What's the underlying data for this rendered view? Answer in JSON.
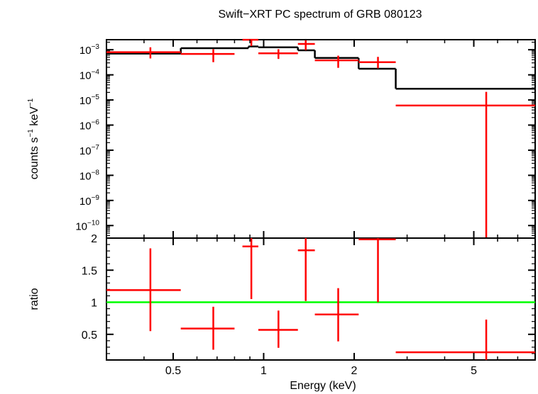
{
  "chart_data": {
    "type": "scatter",
    "title": "Swift−XRT PC spectrum of GRB 080123",
    "xlabel": "Energy (keV)",
    "xscale": "log",
    "xlim": [
      0.3,
      8.0
    ],
    "xticks": [
      {
        "value": 0.5,
        "label": "0.5"
      },
      {
        "value": 1,
        "label": "1"
      },
      {
        "value": 2,
        "label": "2"
      },
      {
        "value": 5,
        "label": "5"
      }
    ],
    "colors": {
      "data": "#ff0000",
      "model": "#000000",
      "unity": "#00ff00"
    },
    "top_panel": {
      "ylabel_main": "counts s",
      "ylabel_exp1": "−1",
      "ylabel_mid": " keV",
      "ylabel_exp2": "−1",
      "yscale": "log",
      "ylim_log10": [
        -10.5,
        -2.6
      ],
      "yticks": [
        {
          "exp": -3,
          "base": "10",
          "sup": "−3"
        },
        {
          "exp": -4,
          "base": "10",
          "sup": "−4"
        },
        {
          "exp": -5,
          "base": "10",
          "sup": "−5"
        },
        {
          "exp": -6,
          "base": "10",
          "sup": "−6"
        },
        {
          "exp": -7,
          "base": "10",
          "sup": "−7"
        },
        {
          "exp": -8,
          "base": "10",
          "sup": "−8"
        },
        {
          "exp": -9,
          "base": "10",
          "sup": "−9"
        },
        {
          "exp": -10,
          "base": "10",
          "sup": "−10"
        }
      ],
      "data": [
        {
          "xlo": 0.3,
          "xhi": 0.53,
          "x": 0.42,
          "y": 0.0008,
          "ylo": 0.00045,
          "yhi": 0.00125
        },
        {
          "xlo": 0.53,
          "xhi": 0.8,
          "x": 0.68,
          "y": 0.00068,
          "ylo": 0.00032,
          "yhi": 0.00105
        },
        {
          "xlo": 0.85,
          "xhi": 0.96,
          "x": 0.91,
          "y": 0.0025,
          "ylo": 0.0014,
          "yhi": 0.0034
        },
        {
          "xlo": 0.96,
          "xhi": 1.3,
          "x": 1.12,
          "y": 0.00072,
          "ylo": 0.00043,
          "yhi": 0.00105
        },
        {
          "xlo": 1.3,
          "xhi": 1.48,
          "x": 1.38,
          "y": 0.0017,
          "ylo": 0.00095,
          "yhi": 0.0024
        },
        {
          "xlo": 1.48,
          "xhi": 2.07,
          "x": 1.77,
          "y": 0.00038,
          "ylo": 0.00019,
          "yhi": 0.00058
        },
        {
          "xlo": 2.07,
          "xhi": 2.75,
          "x": 2.4,
          "y": 0.00032,
          "ylo": 0.00018,
          "yhi": 0.00052
        },
        {
          "xlo": 2.75,
          "xhi": 8.0,
          "x": 5.5,
          "y": 6e-06,
          "ylo": 3e-11,
          "yhi": 2.1e-05
        }
      ],
      "model_steps": [
        {
          "xlo": 0.3,
          "xhi": 0.53,
          "y": 0.0007
        },
        {
          "xlo": 0.53,
          "xhi": 0.89,
          "y": 0.00115
        },
        {
          "xlo": 0.89,
          "xhi": 0.96,
          "y": 0.00135
        },
        {
          "xlo": 0.96,
          "xhi": 1.3,
          "y": 0.00125
        },
        {
          "xlo": 1.3,
          "xhi": 1.48,
          "y": 0.00095
        },
        {
          "xlo": 1.48,
          "xhi": 2.07,
          "y": 0.00047
        },
        {
          "xlo": 2.07,
          "xhi": 2.75,
          "y": 0.000175
        },
        {
          "xlo": 2.75,
          "xhi": 8.0,
          "y": 2.8e-05
        }
      ]
    },
    "bottom_panel": {
      "ylabel": "ratio",
      "ylim": [
        0.1,
        2.0
      ],
      "yticks": [
        {
          "value": 0.5,
          "label": "0.5"
        },
        {
          "value": 1,
          "label": "1"
        },
        {
          "value": 1.5,
          "label": "1.5"
        },
        {
          "value": 2,
          "label": "2"
        }
      ],
      "unity": 1,
      "data": [
        {
          "xlo": 0.3,
          "xhi": 0.53,
          "x": 0.42,
          "y": 1.19,
          "ylo": 0.55,
          "yhi": 1.84
        },
        {
          "xlo": 0.53,
          "xhi": 0.8,
          "x": 0.68,
          "y": 0.59,
          "ylo": 0.26,
          "yhi": 0.93
        },
        {
          "xlo": 0.85,
          "xhi": 0.96,
          "x": 0.91,
          "y": 1.87,
          "ylo": 1.05,
          "yhi": 2.0
        },
        {
          "xlo": 0.96,
          "xhi": 1.3,
          "x": 1.12,
          "y": 0.57,
          "ylo": 0.29,
          "yhi": 0.87
        },
        {
          "xlo": 1.3,
          "xhi": 1.48,
          "x": 1.38,
          "y": 1.81,
          "ylo": 1.02,
          "yhi": 2.0
        },
        {
          "xlo": 1.48,
          "xhi": 2.07,
          "x": 1.77,
          "y": 0.81,
          "ylo": 0.39,
          "yhi": 1.22
        },
        {
          "xlo": 2.07,
          "xhi": 2.75,
          "x": 2.4,
          "y": 1.98,
          "ylo": 1.0,
          "yhi": 2.0
        },
        {
          "xlo": 2.75,
          "xhi": 8.0,
          "x": 5.5,
          "y": 0.22,
          "ylo": 0.1,
          "yhi": 0.73
        }
      ]
    }
  }
}
